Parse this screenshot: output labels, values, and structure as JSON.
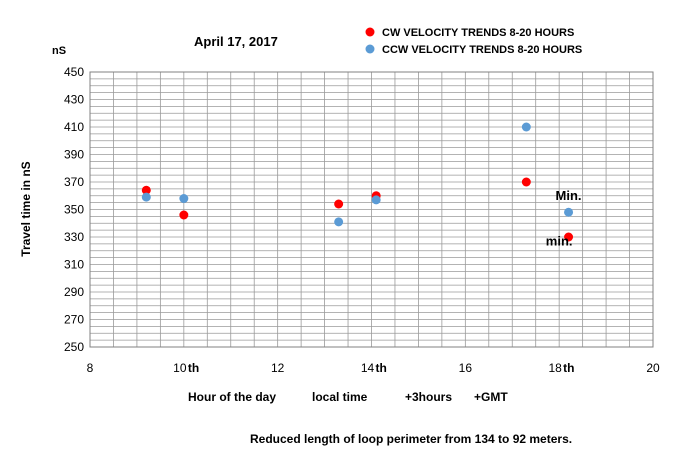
{
  "chart_data": {
    "type": "scatter",
    "title": "April 17, 2017",
    "unit_label": "nS",
    "ylabel": "Travel time in nS",
    "xlabel_parts": [
      "Hour of the day",
      "local time",
      "+3hours",
      "+GMT"
    ],
    "footnote": "Reduced length of loop perimeter from 134 to 92 meters.",
    "xlim": [
      8,
      20
    ],
    "ylim": [
      250,
      450
    ],
    "x_ticks": [
      "8",
      "10",
      "12",
      "14",
      "16",
      "18",
      "20"
    ],
    "x_tick_suffix": "th",
    "x_tick_suffix_on": [
      "10",
      "14",
      "18"
    ],
    "y_ticks": [
      "450",
      "430",
      "410",
      "390",
      "370",
      "350",
      "330",
      "310",
      "290",
      "270",
      "250"
    ],
    "grid": true,
    "legend_position": "top-right",
    "series": [
      {
        "name": "CW VELOCITY TRENDS 8-20 HOURS",
        "color": "#ff0000",
        "points": [
          {
            "x": 9.2,
            "y": 364
          },
          {
            "x": 10.0,
            "y": 346
          },
          {
            "x": 13.3,
            "y": 354
          },
          {
            "x": 14.1,
            "y": 360
          },
          {
            "x": 17.3,
            "y": 370
          },
          {
            "x": 18.2,
            "y": 330
          }
        ]
      },
      {
        "name": "CCW VELOCITY TRENDS 8-20 HOURS",
        "color": "#5b9bd5",
        "points": [
          {
            "x": 9.2,
            "y": 359
          },
          {
            "x": 10.0,
            "y": 358
          },
          {
            "x": 13.3,
            "y": 341
          },
          {
            "x": 14.1,
            "y": 357
          },
          {
            "x": 17.3,
            "y": 410
          },
          {
            "x": 18.2,
            "y": 348
          }
        ]
      }
    ],
    "annotations": [
      {
        "text": "Min.",
        "x": 18.2,
        "y": 357,
        "color": "#1fa3e0"
      },
      {
        "text": "min.",
        "x": 18.0,
        "y": 324,
        "color": "#ff0000"
      }
    ]
  }
}
